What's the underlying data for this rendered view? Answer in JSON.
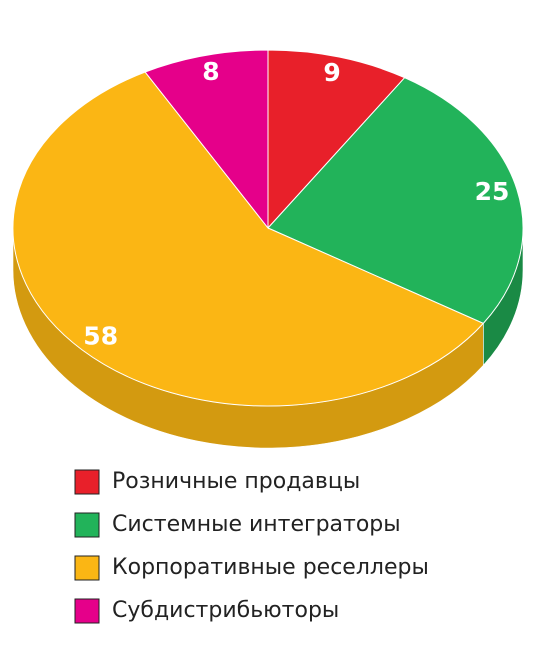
{
  "chart_data": {
    "type": "pie",
    "categories": [
      "Розничные продавцы",
      "Системные интеграторы",
      "Корпоративные реселлеры",
      "Субдистрибьюторы"
    ],
    "values": [
      9,
      25,
      58,
      8
    ],
    "colors": [
      "#e8202a",
      "#22b35a",
      "#fbb614",
      "#e5008a"
    ],
    "side_colors": [
      "#b3161d",
      "#1a8a45",
      "#d39a10",
      "#b0006a"
    ]
  }
}
